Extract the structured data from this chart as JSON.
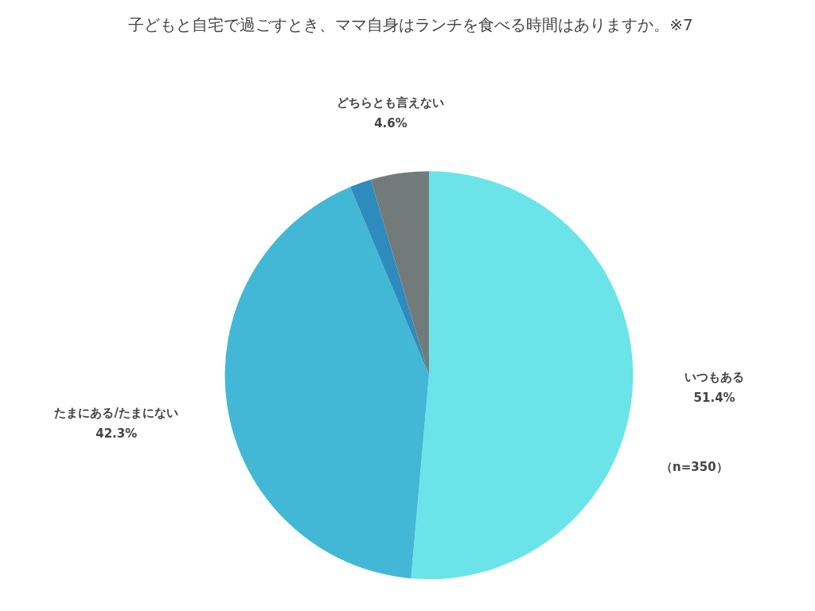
{
  "chart_data": {
    "type": "pie",
    "title": "子どもと自宅で過ごすとき、ママ自身はランチを食べる時間はありますか。※7",
    "categories": [
      "いつもある",
      "たまにある/たまにない",
      null,
      "どちらとも言えない"
    ],
    "values": [
      51.4,
      42.3,
      1.7,
      4.6
    ],
    "colors": [
      "#6ae4e8",
      "#42b8d6",
      "#2e8bbd",
      "#737a7a"
    ],
    "value_labels": [
      "51.4%",
      "42.3%",
      null,
      "4.6%"
    ],
    "annotations": [
      "（n=350）"
    ]
  }
}
